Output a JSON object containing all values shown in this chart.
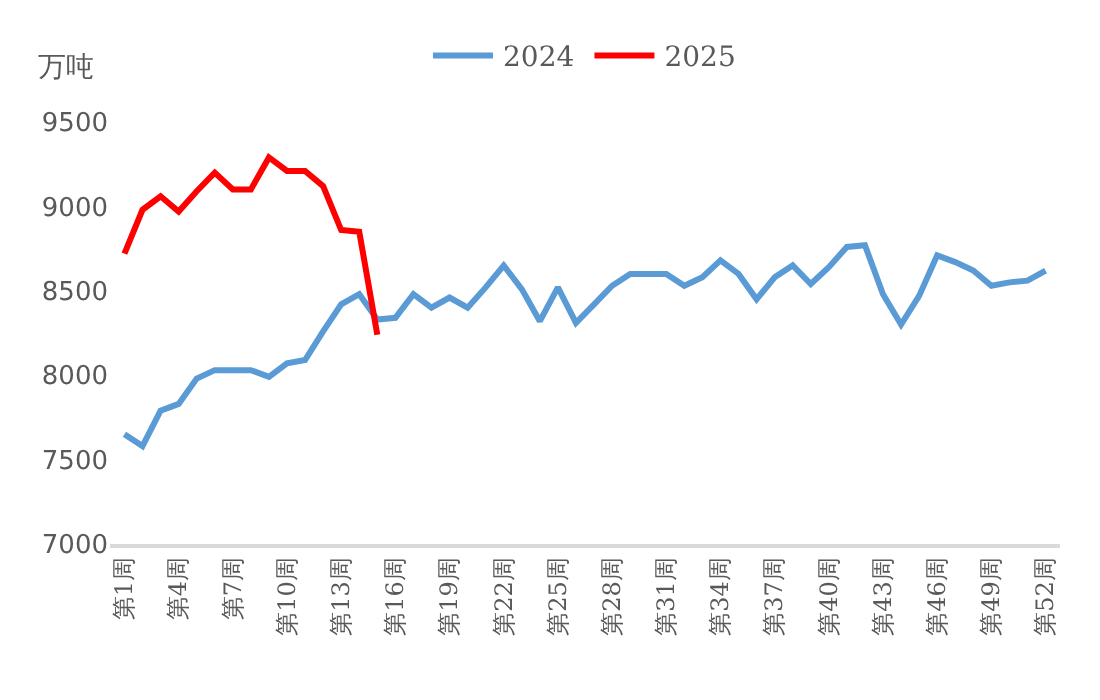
{
  "chart_data": {
    "type": "line",
    "ylabel": "万吨",
    "categories": [
      "第1周",
      null,
      null,
      "第4周",
      null,
      null,
      "第7周",
      null,
      null,
      "第10周",
      null,
      null,
      "第13周",
      null,
      null,
      "第16周",
      null,
      null,
      "第19周",
      null,
      null,
      "第22周",
      null,
      null,
      "第25周",
      null,
      null,
      "第28周",
      null,
      null,
      "第31周",
      null,
      null,
      "第34周",
      null,
      null,
      "第37周",
      null,
      null,
      "第40周",
      null,
      null,
      "第43周",
      null,
      null,
      "第46周",
      null,
      null,
      "第49周",
      null,
      null,
      "第52周"
    ],
    "series": [
      {
        "name": "2024",
        "color": "#5b9bd5",
        "values": [
          7650,
          7580,
          7790,
          7830,
          7980,
          8030,
          8030,
          8030,
          7990,
          8070,
          8090,
          8260,
          8420,
          8480,
          8330,
          8340,
          8480,
          8400,
          8460,
          8400,
          8520,
          8650,
          8510,
          8320,
          8520,
          8310,
          8420,
          8530,
          8600,
          8600,
          8600,
          8530,
          8580,
          8680,
          8600,
          8450,
          8580,
          8650,
          8540,
          8640,
          8760,
          8770,
          8480,
          8300,
          8470,
          8710,
          8670,
          8620,
          8530,
          8550,
          8560,
          8620
        ]
      },
      {
        "name": "2025",
        "color": "#ff0000",
        "values": [
          8720,
          8980,
          9060,
          8970,
          9090,
          9200,
          9100,
          9100,
          9290,
          9210,
          9210,
          9120,
          8860,
          8850,
          8240,
          null,
          null,
          null,
          null,
          null,
          null,
          null,
          null,
          null,
          null,
          null,
          null,
          null,
          null,
          null,
          null,
          null,
          null,
          null,
          null,
          null,
          null,
          null,
          null,
          null,
          null,
          null,
          null,
          null,
          null,
          null,
          null,
          null,
          null,
          null,
          null,
          null
        ]
      }
    ],
    "ylim": [
      7000,
      9500
    ],
    "yticks": [
      7000,
      7500,
      8000,
      8500,
      9000,
      9500
    ],
    "legend": "top",
    "marker": "none",
    "line_style": "solid"
  }
}
